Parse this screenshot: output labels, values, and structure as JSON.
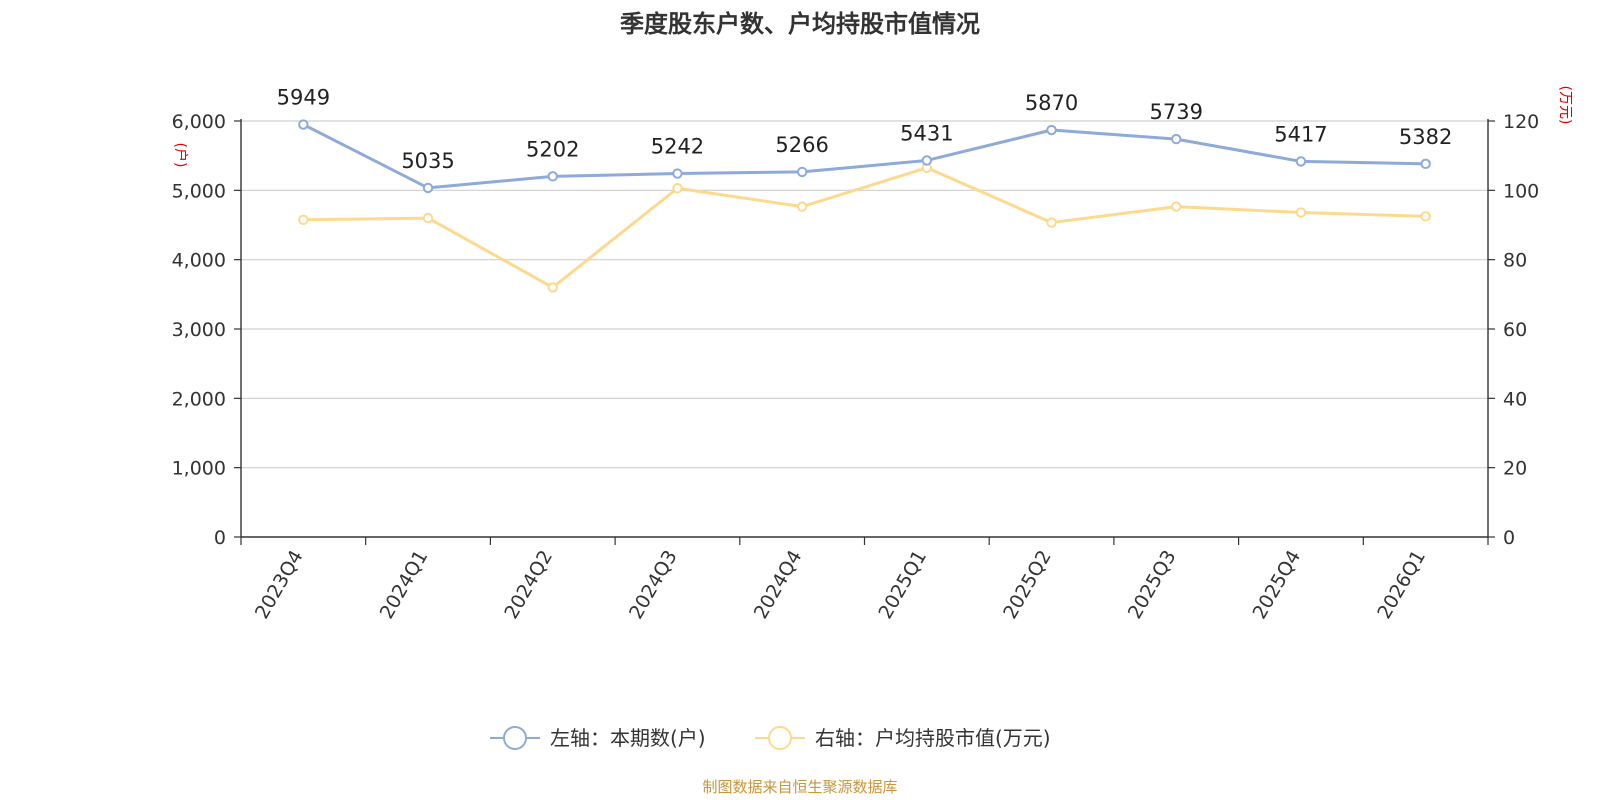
{
  "chart_data": {
    "type": "line",
    "title": "季度股东户数、户均持股市值情况",
    "categories": [
      "2023Q4",
      "2024Q1",
      "2024Q2",
      "2024Q3",
      "2024Q4",
      "2025Q1",
      "2025Q2",
      "2025Q3",
      "2025Q4",
      "2026Q1"
    ],
    "left_axis": {
      "unit": "(户)",
      "ylim": [
        0,
        6000
      ],
      "ticks": [
        "0",
        "1,000",
        "2,000",
        "3,000",
        "4,000",
        "5,000",
        "6,000"
      ],
      "tick_values": [
        0,
        1000,
        2000,
        3000,
        4000,
        5000,
        6000
      ]
    },
    "right_axis": {
      "unit": "(万元)",
      "ylim": [
        0,
        120
      ],
      "ticks": [
        "0",
        "20",
        "40",
        "60",
        "80",
        "100",
        "120"
      ],
      "tick_values": [
        0,
        20,
        40,
        60,
        80,
        100,
        120
      ]
    },
    "series": [
      {
        "name": "左轴：本期数(户)",
        "axis": "left",
        "color": "#8eaad8",
        "values": [
          5949,
          5035,
          5202,
          5242,
          5266,
          5431,
          5870,
          5739,
          5417,
          5382
        ],
        "labels": [
          "5949",
          "5035",
          "5202",
          "5242",
          "5266",
          "5431",
          "5870",
          "5739",
          "5417",
          "5382"
        ]
      },
      {
        "name": "右轴：户均持股市值(万元)",
        "axis": "right",
        "color": "#fdd98e",
        "values": [
          91.5,
          92.0,
          72.0,
          100.6,
          95.3,
          106.5,
          90.7,
          95.3,
          93.6,
          92.5
        ]
      }
    ],
    "grid": true,
    "legend_position": "bottom-center"
  },
  "footer": {
    "source": "制图数据来自恒生聚源数据库"
  }
}
